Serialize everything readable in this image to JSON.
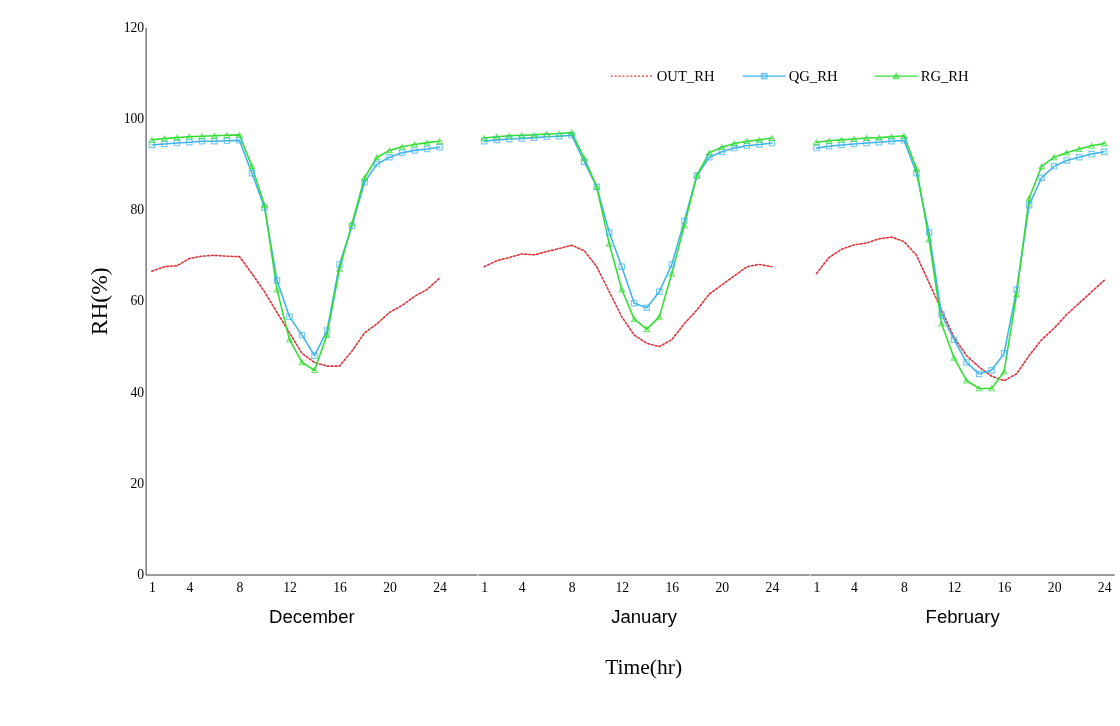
{
  "chart_data": [
    {
      "type": "line",
      "xlabel": "December",
      "ylabel": "RH(%)",
      "x": [
        1,
        2,
        3,
        4,
        5,
        6,
        7,
        8,
        9,
        10,
        11,
        12,
        13,
        14,
        15,
        16,
        17,
        18,
        19,
        20,
        21,
        22,
        23,
        24
      ],
      "xlim": [
        0.5,
        27
      ],
      "xticks": [
        1,
        4,
        8,
        12,
        16,
        20,
        24
      ],
      "ylim": [
        0,
        120
      ],
      "yticks": [
        0,
        20,
        40,
        60,
        80,
        100,
        120
      ],
      "grid": false,
      "series": [
        {
          "color": "#e0303a",
          "line_style": "dotted",
          "marker": "none",
          "values": [
            66.5,
            67.5,
            67.7,
            69.3,
            69.8,
            70,
            69.8,
            69.7,
            66,
            62,
            57.5,
            53,
            48.5,
            46.5,
            45.7,
            45.7,
            49,
            53,
            55,
            57.5,
            59,
            61,
            62.5,
            65
          ]
        },
        {
          "color": "#3fb4ea",
          "line_style": "solid",
          "marker": "square",
          "values": [
            94.2,
            94.4,
            94.6,
            94.8,
            95,
            95,
            95.1,
            95.2,
            88,
            80.5,
            64.5,
            56.5,
            52.5,
            48,
            53.5,
            68,
            76.5,
            86,
            90,
            91.5,
            92.5,
            93,
            93.3,
            93.7
          ]
        },
        {
          "color": "#33dd33",
          "line_style": "solid",
          "marker": "triangle",
          "values": [
            95.3,
            95.6,
            95.8,
            96,
            96.1,
            96.2,
            96.3,
            96.4,
            89.5,
            81,
            62.5,
            51.5,
            46.5,
            44.8,
            52.5,
            67,
            77,
            87,
            91.5,
            93,
            93.8,
            94.3,
            94.7,
            95
          ]
        }
      ]
    },
    {
      "type": "line",
      "xlabel": "January",
      "annotations": [
        "Time(hr)"
      ],
      "x": [
        1,
        2,
        3,
        4,
        5,
        6,
        7,
        8,
        9,
        10,
        11,
        12,
        13,
        14,
        15,
        16,
        17,
        18,
        19,
        20,
        21,
        22,
        23,
        24
      ],
      "xlim": [
        0.5,
        27
      ],
      "xticks": [
        1,
        4,
        8,
        12,
        16,
        20,
        24
      ],
      "ylim": [
        0,
        120
      ],
      "tick_labels": "x",
      "grid": false,
      "series": [
        {
          "color": "#e0303a",
          "line_style": "dotted",
          "marker": "none",
          "values": [
            67.5,
            68.8,
            69.5,
            70.3,
            70.1,
            70.8,
            71.5,
            72.2,
            71,
            67.5,
            62,
            56.5,
            52.5,
            50.7,
            50,
            51.5,
            55,
            58,
            61.5,
            63.5,
            65.5,
            67.5,
            68,
            67.5
          ]
        },
        {
          "color": "#3fb4ea",
          "line_style": "solid",
          "marker": "square",
          "values": [
            95,
            95.3,
            95.5,
            95.6,
            95.8,
            96,
            96.1,
            96.3,
            90.5,
            85,
            75,
            67.5,
            59.5,
            58.5,
            62,
            68,
            77.5,
            87.5,
            91.5,
            92.7,
            93.5,
            94,
            94.3,
            94.6
          ]
        },
        {
          "color": "#33dd33",
          "line_style": "solid",
          "marker": "triangle",
          "values": [
            95.7,
            96,
            96.2,
            96.3,
            96.4,
            96.6,
            96.7,
            96.9,
            91.3,
            85,
            72.5,
            62.5,
            56,
            53.8,
            56.5,
            66,
            76.5,
            87.5,
            92.5,
            93.7,
            94.5,
            95,
            95.3,
            95.7
          ]
        }
      ]
    },
    {
      "type": "line",
      "xlabel": "February",
      "x": [
        1,
        2,
        3,
        4,
        5,
        6,
        7,
        8,
        9,
        10,
        11,
        12,
        13,
        14,
        15,
        16,
        17,
        18,
        19,
        20,
        21,
        22,
        23,
        24
      ],
      "xlim": [
        0.5,
        24.8
      ],
      "xticks": [
        1,
        4,
        8,
        12,
        16,
        20,
        24
      ],
      "ylim": [
        0,
        120
      ],
      "tick_labels": "x",
      "grid": false,
      "legend": "top",
      "series": [
        {
          "name": "OUT_RH",
          "color": "#e0303a",
          "line_style": "dotted",
          "marker": "none",
          "values": [
            66,
            69.5,
            71.3,
            72.3,
            72.7,
            73.6,
            74,
            73,
            70,
            64,
            58,
            52,
            48,
            45.5,
            43.5,
            42.5,
            44,
            48,
            51.5,
            54,
            57,
            59.5,
            62,
            64.5
          ]
        },
        {
          "name": "QG_RH",
          "color": "#3fb4ea",
          "line_style": "solid",
          "marker": "square",
          "values": [
            93.5,
            93.9,
            94.2,
            94.4,
            94.6,
            94.8,
            95,
            95.2,
            88,
            75,
            57,
            51.5,
            46.5,
            44,
            44.8,
            48.5,
            62.5,
            81,
            87,
            89.5,
            90.8,
            91.5,
            92.2,
            92.7
          ]
        },
        {
          "name": "RG_RH",
          "color": "#33dd33",
          "line_style": "solid",
          "marker": "triangle",
          "values": [
            94.8,
            95.1,
            95.3,
            95.5,
            95.7,
            95.8,
            96,
            96.2,
            89,
            73.5,
            55,
            47.5,
            42.5,
            40.8,
            40.8,
            44.5,
            61.5,
            82.5,
            89.5,
            91.5,
            92.5,
            93.3,
            94,
            94.5
          ]
        }
      ]
    }
  ]
}
